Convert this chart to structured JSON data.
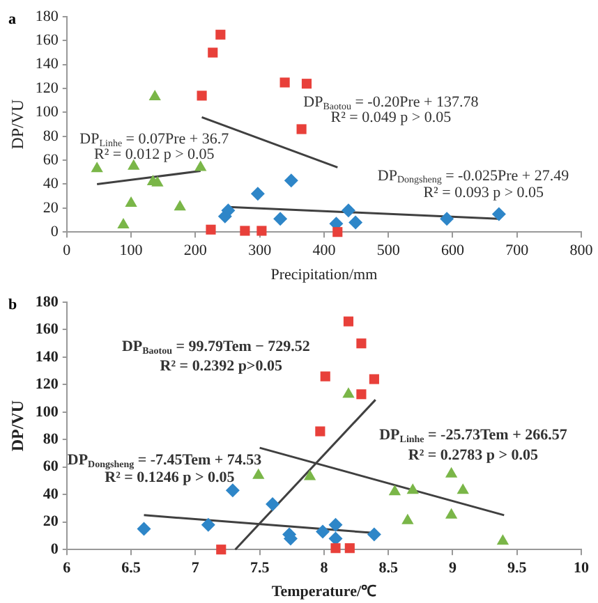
{
  "chart_data": [
    {
      "type": "scatter",
      "title": "a",
      "xlabel": "Precipitation/mm",
      "ylabel": "DP/VU",
      "xlim": [
        0,
        800
      ],
      "xticks": [
        0,
        100,
        200,
        300,
        400,
        500,
        600,
        700,
        800
      ],
      "ylim": [
        0,
        180
      ],
      "yticks": [
        0,
        20,
        40,
        60,
        80,
        100,
        120,
        140,
        160,
        180
      ],
      "grid": false,
      "legend": false,
      "series": [
        {
          "color": "#e8403a",
          "marker": "square",
          "x": [
            210,
            227,
            239,
            339,
            373,
            365,
            224,
            277,
            303,
            421
          ],
          "values": [
            114,
            150,
            165,
            125,
            124,
            86,
            2,
            1,
            1,
            0
          ]
        },
        {
          "color": "#7ab648",
          "marker": "triangle",
          "x": [
            47,
            104,
            137,
            100,
            88,
            134,
            141,
            176,
            208
          ],
          "values": [
            53,
            55,
            113,
            24,
            6,
            42,
            41,
            21,
            54
          ]
        },
        {
          "color": "#2e86c8",
          "marker": "diamond",
          "x": [
            246,
            251,
            297,
            332,
            349,
            419,
            438,
            449,
            591,
            672
          ],
          "values": [
            13,
            18,
            32,
            11,
            43,
            7,
            18,
            8,
            11,
            15
          ]
        },
        {
          "type": "line",
          "color": "#404040",
          "marker": "none",
          "x": [
            47,
            208
          ],
          "values": [
            40,
            51
          ]
        },
        {
          "type": "line",
          "color": "#404040",
          "marker": "none",
          "x": [
            210,
            421
          ],
          "values": [
            96,
            54
          ]
        },
        {
          "type": "line",
          "color": "#404040",
          "marker": "none",
          "x": [
            251,
            672
          ],
          "values": [
            21,
            11
          ]
        }
      ],
      "annotations": [
        "DP$_{Linhe}$ = 0.07Pre + 36.7",
        "R² = 0.012 p > 0.05",
        "DP$_{Baotou}$ = -0.20Pre + 137.78",
        "R² = 0.049 p > 0.05",
        "DP$_{Dongsheng}$ = -0.025Pre + 27.49",
        "R² = 0.093 p > 0.05"
      ]
    },
    {
      "type": "scatter",
      "title": "b",
      "xlabel": "Temperature/℃",
      "ylabel": "DP/VU",
      "xlim": [
        6,
        10
      ],
      "xticks": [
        6,
        6.5,
        7,
        7.5,
        8,
        8.5,
        9,
        9.5,
        10
      ],
      "ylim": [
        0,
        180
      ],
      "yticks": [
        0,
        20,
        40,
        60,
        80,
        100,
        120,
        140,
        160,
        180
      ],
      "grid": false,
      "legend": false,
      "series": [
        {
          "color": "#e8403a",
          "marker": "square",
          "x": [
            7.2,
            7.97,
            8.01,
            8.19,
            8.29,
            8.29,
            8.39,
            8.09,
            8.2
          ],
          "values": [
            0,
            86,
            126,
            166,
            150,
            113,
            124,
            1,
            1
          ]
        },
        {
          "color": "#7ab648",
          "marker": "triangle",
          "x": [
            7.49,
            7.89,
            8.19,
            8.55,
            8.69,
            8.65,
            8.99,
            9.08,
            8.99,
            9.39
          ],
          "values": [
            54,
            53,
            113,
            42,
            43,
            21,
            55,
            43,
            25,
            6
          ]
        },
        {
          "color": "#2e86c8",
          "marker": "diamond",
          "x": [
            6.6,
            7.1,
            7.29,
            7.6,
            7.73,
            7.74,
            7.99,
            8.09,
            8.09,
            8.39
          ],
          "values": [
            15,
            18,
            43,
            33,
            11,
            8,
            13,
            18,
            8,
            11
          ]
        },
        {
          "type": "line",
          "color": "#404040",
          "marker": "none",
          "x": [
            7.31,
            8.4
          ],
          "values": [
            0,
            109
          ]
        },
        {
          "type": "line",
          "color": "#404040",
          "marker": "none",
          "x": [
            7.5,
            9.4
          ],
          "values": [
            74,
            25
          ]
        },
        {
          "type": "line",
          "color": "#404040",
          "marker": "none",
          "x": [
            6.6,
            8.4
          ],
          "values": [
            25,
            12
          ]
        }
      ],
      "annotations": [
        "DP$_{Baotou}$ = 99.79Tem − 729.52",
        "R² = 0.2392 p>0.05",
        "DP$_{Dongsheng}$ = -7.45Tem + 74.53",
        "R² = 0.1246 p > 0.05",
        "DP$_{Linhe}$ = -25.73Tem + 266.57",
        "R² = 0.2783 p > 0.05"
      ]
    }
  ]
}
